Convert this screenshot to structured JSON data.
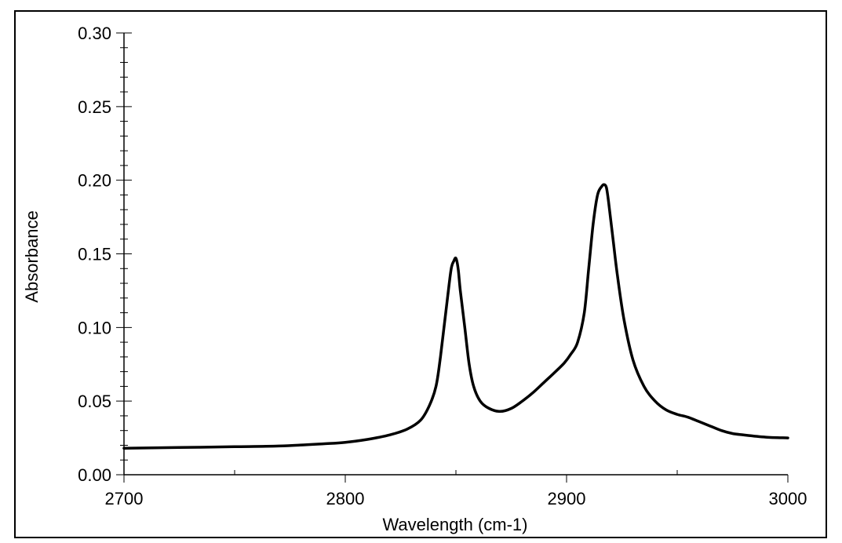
{
  "chart_data": {
    "type": "line",
    "xlabel": "Wavelength (cm-1)",
    "ylabel": "Absorbance",
    "xlim": [
      2700,
      3000
    ],
    "ylim": [
      0.0,
      0.3
    ],
    "x_ticks": [
      2700,
      2800,
      2900,
      3000
    ],
    "x_tick_labels": [
      "2700",
      "2800",
      "2900",
      "3000"
    ],
    "y_ticks": [
      0.0,
      0.05,
      0.1,
      0.15,
      0.2,
      0.25,
      0.3
    ],
    "y_tick_labels": [
      "0.00",
      "0.05",
      "0.10",
      "0.15",
      "0.20",
      "0.25",
      "0.30"
    ],
    "grid": false,
    "line_color": "#000000",
    "series": [
      {
        "x": [
          2700,
          2725,
          2750,
          2770,
          2790,
          2800,
          2810,
          2820,
          2828,
          2834,
          2838,
          2841,
          2843,
          2845,
          2847,
          2848,
          2849,
          2850,
          2851,
          2852,
          2854,
          2856,
          2858,
          2861,
          2865,
          2870,
          2875,
          2880,
          2885,
          2890,
          2895,
          2899,
          2902,
          2905,
          2908,
          2910,
          2912,
          2914,
          2916,
          2917,
          2918,
          2919,
          2921,
          2923,
          2926,
          2930,
          2935,
          2940,
          2945,
          2950,
          2955,
          2960,
          2965,
          2970,
          2975,
          2980,
          2990,
          3000
        ],
        "y": [
          0.018,
          0.0185,
          0.019,
          0.0195,
          0.021,
          0.022,
          0.024,
          0.027,
          0.031,
          0.037,
          0.047,
          0.06,
          0.08,
          0.105,
          0.13,
          0.141,
          0.145,
          0.147,
          0.14,
          0.125,
          0.1,
          0.075,
          0.06,
          0.05,
          0.045,
          0.043,
          0.045,
          0.05,
          0.056,
          0.063,
          0.07,
          0.076,
          0.082,
          0.09,
          0.11,
          0.14,
          0.17,
          0.19,
          0.196,
          0.197,
          0.195,
          0.185,
          0.16,
          0.135,
          0.105,
          0.078,
          0.06,
          0.05,
          0.044,
          0.041,
          0.039,
          0.036,
          0.033,
          0.03,
          0.028,
          0.027,
          0.0255,
          0.025
        ]
      }
    ]
  }
}
